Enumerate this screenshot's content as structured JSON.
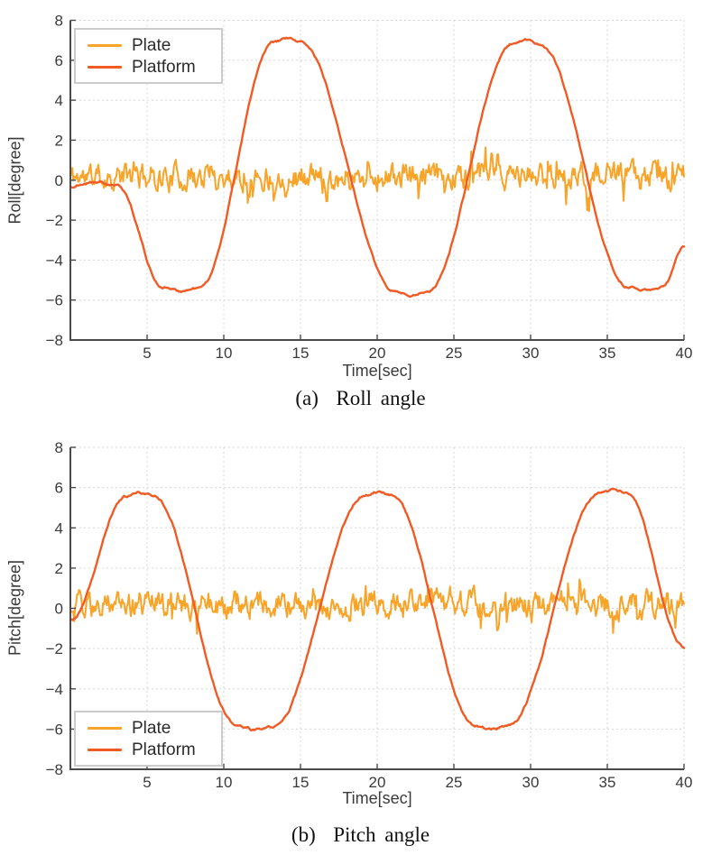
{
  "page": {
    "background": "#ffffff"
  },
  "styles": {
    "plate_color": "#F8A428",
    "platform_color": "#F25A24",
    "axis_color": "#4a4a4a",
    "grid_color": "#d6d6d6",
    "tick_label_color": "#3a3a3a",
    "legend_border_color": "#cbcbcb",
    "caption_color": "#111111"
  },
  "chart_data": [
    {
      "type": "line",
      "caption": "(a)  Roll angle",
      "xlabel": "Time[sec]",
      "ylabel": "Roll[degree]",
      "xlim": [
        0,
        40
      ],
      "ylim": [
        -8,
        8
      ],
      "xticks": [
        5,
        10,
        15,
        20,
        25,
        30,
        35,
        40
      ],
      "yticks": [
        8,
        6,
        4,
        2,
        0,
        -2,
        -4,
        -6,
        -8
      ],
      "grid": true,
      "legend": {
        "position": "top-left",
        "items": [
          "Plate",
          "Platform"
        ]
      },
      "series": [
        {
          "name": "Plate",
          "color": "#F8A428",
          "kind": "noise",
          "description": "plate roll angle: high-frequency noise around zero, roughly -1.5 to +1.8 deg",
          "mean": 0.18,
          "step": 0.52,
          "smoothness": 0.58,
          "spike_chance": 0.05,
          "spike_gain": 2.4,
          "clip": [
            -1.55,
            1.85
          ],
          "samples": 640,
          "seed": 11
        },
        {
          "name": "Platform",
          "color": "#F25A24",
          "kind": "keypoints",
          "description": "platform roll angle: ~15.7 s period oscillation, peaks ~ +7.1, troughs ~ -5.6",
          "jitter": 0.045,
          "samples": 560,
          "seed": 21,
          "keypoints": [
            [
              0,
              -0.35
            ],
            [
              1.6,
              -0.08
            ],
            [
              3.1,
              -0.3
            ],
            [
              6.0,
              -5.35
            ],
            [
              7.2,
              -5.55
            ],
            [
              8.4,
              -5.4
            ],
            [
              13.3,
              6.9
            ],
            [
              14.1,
              7.1
            ],
            [
              15.0,
              6.9
            ],
            [
              21.2,
              -5.55
            ],
            [
              22.1,
              -5.75
            ],
            [
              23.2,
              -5.6
            ],
            [
              28.9,
              6.85
            ],
            [
              29.7,
              7.0
            ],
            [
              30.6,
              6.8
            ],
            [
              36.4,
              -5.35
            ],
            [
              37.5,
              -5.5
            ],
            [
              38.6,
              -5.35
            ],
            [
              40,
              -3.35
            ]
          ]
        }
      ]
    },
    {
      "type": "line",
      "caption": "(b)  Pitch angle",
      "xlabel": "Time[sec]",
      "ylabel": "Pitch[degree]",
      "xlim": [
        0,
        40
      ],
      "ylim": [
        -8,
        8
      ],
      "xticks": [
        5,
        10,
        15,
        20,
        25,
        30,
        35,
        40
      ],
      "yticks": [
        8,
        6,
        4,
        2,
        0,
        -2,
        -4,
        -6,
        -8
      ],
      "grid": true,
      "legend": {
        "position": "bottom-left",
        "items": [
          "Plate",
          "Platform"
        ]
      },
      "series": [
        {
          "name": "Plate",
          "color": "#F8A428",
          "kind": "noise",
          "description": "plate pitch angle: high-frequency noise around zero, roughly -1.5 to +1.6 deg",
          "mean": 0.18,
          "step": 0.52,
          "smoothness": 0.58,
          "spike_chance": 0.05,
          "spike_gain": 2.4,
          "clip": [
            -1.55,
            1.7
          ],
          "samples": 640,
          "seed": 29
        },
        {
          "name": "Platform",
          "color": "#F25A24",
          "kind": "keypoints",
          "description": "platform pitch angle: ~15.6 s period oscillation, peaks ~ +5.8, troughs ~ -6.0",
          "jitter": 0.045,
          "samples": 560,
          "seed": 37,
          "keypoints": [
            [
              0,
              -0.6
            ],
            [
              3.6,
              5.55
            ],
            [
              4.5,
              5.75
            ],
            [
              5.4,
              5.6
            ],
            [
              10.9,
              -5.85
            ],
            [
              12.1,
              -6.05
            ],
            [
              13.2,
              -5.9
            ],
            [
              19.2,
              5.6
            ],
            [
              20.0,
              5.8
            ],
            [
              20.9,
              5.65
            ],
            [
              26.4,
              -5.85
            ],
            [
              27.4,
              -6.0
            ],
            [
              28.5,
              -5.85
            ],
            [
              34.5,
              5.7
            ],
            [
              35.5,
              5.9
            ],
            [
              36.3,
              5.7
            ],
            [
              40,
              -1.9
            ]
          ]
        }
      ]
    }
  ]
}
